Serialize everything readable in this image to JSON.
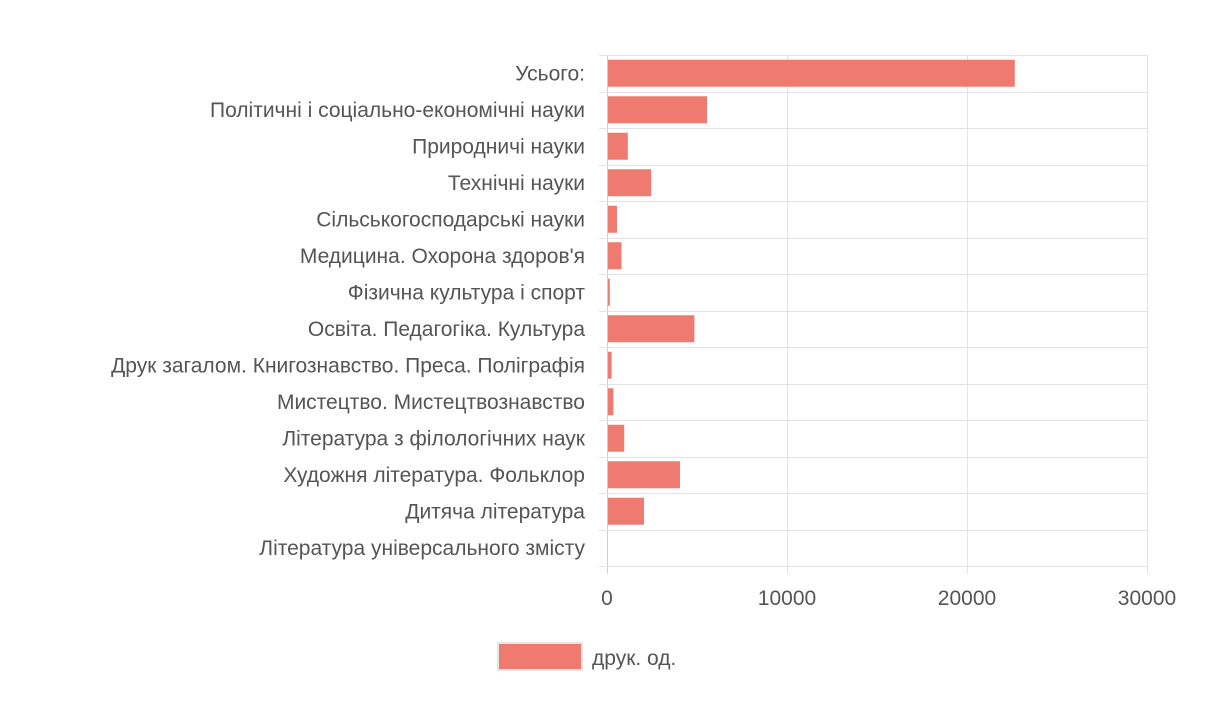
{
  "chart_data": {
    "type": "bar",
    "orientation": "horizontal",
    "categories": [
      "Усього:",
      "Політичні і соціально-економічні науки",
      "Природничі науки",
      "Технічні науки",
      "Сільськогосподарські науки",
      "Медицина. Охорона здоров'я",
      "Фізична культура і спорт",
      "Освіта. Педагогіка. Культура",
      "Друк загалом. Книгознавство. Преса. Поліграфія",
      "Мистецтво. Мистецтвознавство",
      "Література з філологічних наук",
      "Художня література. Фольклор",
      "Дитяча література",
      "Література універсального змісту"
    ],
    "series": [
      {
        "name": "друк. од.",
        "color": "#ef7a70",
        "values": [
          22600,
          5500,
          1100,
          2400,
          500,
          750,
          100,
          4800,
          200,
          300,
          900,
          4000,
          2000,
          0
        ]
      }
    ],
    "xlim": [
      0,
      30000
    ],
    "xticks": [
      "0",
      "10000",
      "20000",
      "30000"
    ],
    "grid": true,
    "legend": "bottom-center"
  }
}
